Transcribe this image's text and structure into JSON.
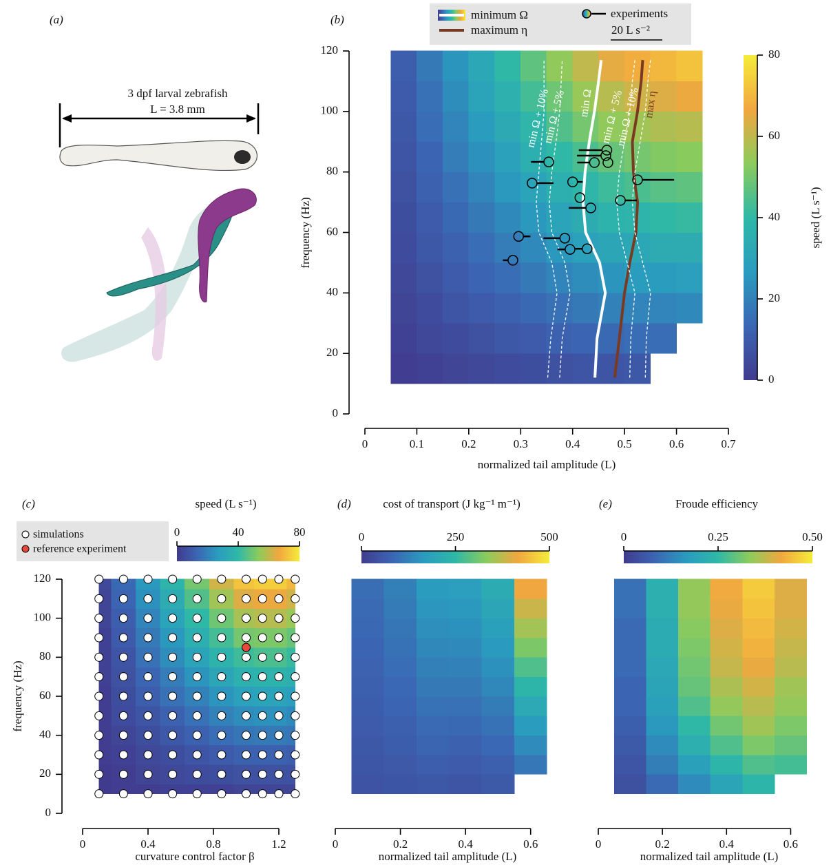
{
  "illustration": {
    "label": "(a)",
    "title": "3 dpf larval zebrafish",
    "scale": "L = 3.8 mm"
  },
  "chart_data": [
    {
      "type": "contour",
      "label": "(b)",
      "xlabel": "normalized tail amplitude (L)",
      "ylabel": "frequency (Hz)",
      "xlim": [
        0,
        0.7
      ],
      "xticks": [
        0,
        0.1,
        0.2,
        0.3,
        0.4,
        0.5,
        0.6,
        0.7
      ],
      "ylim": [
        0,
        120
      ],
      "yticks": [
        0,
        20,
        40,
        60,
        80,
        100,
        120
      ],
      "colormap": [
        "#413b8e",
        "#3b66b3",
        "#2a9cbf",
        "#2fb8a6",
        "#8ccb5c",
        "#f1a73f",
        "#f5ec3a"
      ],
      "colorbar": {
        "label": "speed (L s⁻¹)",
        "zlim": [
          0,
          80
        ],
        "ticks": [
          0,
          20,
          40,
          60,
          80
        ]
      },
      "x_edges": [
        0.05,
        0.1,
        0.15,
        0.2,
        0.25,
        0.3,
        0.35,
        0.4,
        0.45,
        0.5,
        0.55,
        0.6,
        0.65
      ],
      "y_edges": [
        10,
        20,
        30,
        40,
        50,
        60,
        70,
        80,
        90,
        100,
        110,
        120
      ],
      "z": [
        [
          1,
          2,
          3,
          4,
          5,
          6,
          7,
          8,
          8,
          9,
          null,
          null
        ],
        [
          2,
          4,
          5,
          7,
          9,
          10,
          12,
          13,
          14,
          15,
          15,
          null
        ],
        [
          3,
          5,
          8,
          10,
          12,
          14,
          16,
          18,
          20,
          21,
          21,
          22
        ],
        [
          4,
          7,
          10,
          13,
          15,
          18,
          21,
          23,
          25,
          27,
          27,
          28
        ],
        [
          5,
          9,
          12,
          15,
          19,
          22,
          26,
          29,
          31,
          32,
          34,
          34
        ],
        [
          6,
          10,
          14,
          18,
          22,
          26,
          30,
          34,
          37,
          38,
          40,
          41
        ],
        [
          7,
          12,
          16,
          21,
          26,
          30,
          35,
          39,
          42,
          44,
          46,
          47
        ],
        [
          8,
          13,
          19,
          24,
          29,
          35,
          40,
          44,
          48,
          50,
          52,
          53
        ],
        [
          9,
          15,
          21,
          27,
          33,
          39,
          45,
          50,
          54,
          56,
          58,
          59
        ],
        [
          10,
          16,
          23,
          30,
          36,
          43,
          49,
          55,
          59,
          62,
          64,
          66
        ],
        [
          11,
          18,
          25,
          32,
          40,
          47,
          54,
          60,
          65,
          68,
          70,
          72
        ]
      ],
      "scale_bar": {
        "value": 20,
        "label": "20 L s⁻²"
      },
      "series": [
        {
          "name": "minimum Ω",
          "label": "min Ω",
          "color": "#ffffff",
          "x": [
            0.443,
            0.447,
            0.463,
            0.452,
            0.425,
            0.42,
            0.424,
            0.432,
            0.442,
            0.45,
            0.455
          ],
          "y": [
            12,
            25,
            40,
            50,
            60,
            70,
            80,
            90,
            100,
            110,
            117
          ]
        },
        {
          "name": "maximum η",
          "label": "max η",
          "color": "#7a3a22",
          "x": [
            0.481,
            0.49,
            0.5,
            0.51,
            0.522,
            0.525,
            0.517,
            0.515,
            0.525,
            0.532,
            0.535
          ],
          "y": [
            12,
            25,
            40,
            50,
            60,
            70,
            80,
            90,
            100,
            110,
            117
          ]
        },
        {
          "label": "min Ω + 10%",
          "color": "#ffffff",
          "dashed": true,
          "x": [
            0.352,
            0.358,
            0.37,
            0.36,
            0.335,
            0.33,
            0.335,
            0.34,
            0.345,
            0.345,
            0.345
          ],
          "y": [
            12,
            25,
            40,
            50,
            60,
            70,
            80,
            90,
            100,
            110,
            117
          ]
        },
        {
          "label": "min Ω + 5%",
          "color": "#ffffff",
          "dashed": true,
          "x": [
            0.375,
            0.38,
            0.395,
            0.385,
            0.36,
            0.355,
            0.36,
            0.368,
            0.375,
            0.378,
            0.38
          ],
          "y": [
            12,
            25,
            40,
            50,
            60,
            70,
            80,
            90,
            100,
            110,
            117
          ]
        },
        {
          "label": "min Ω + 5%",
          "color": "#ffffff",
          "dashed": true,
          "x": [
            0.51,
            0.512,
            0.52,
            0.505,
            0.49,
            0.485,
            0.49,
            0.5,
            0.51,
            0.515,
            0.52
          ],
          "y": [
            12,
            25,
            40,
            50,
            60,
            70,
            80,
            90,
            100,
            110,
            117
          ]
        },
        {
          "label": "min Ω + 10%",
          "color": "#ffffff",
          "dashed": true,
          "x": [
            0.54,
            0.542,
            0.55,
            0.535,
            0.52,
            0.515,
            0.52,
            0.53,
            0.54,
            0.545,
            0.55
          ],
          "y": [
            12,
            25,
            40,
            50,
            60,
            70,
            80,
            90,
            100,
            110,
            117
          ]
        },
        {
          "name": "experiments",
          "type": "scatter",
          "color": "#000000",
          "x": [
            0.322,
            0.296,
            0.285,
            0.354,
            0.4,
            0.414,
            0.435,
            0.385,
            0.395,
            0.428,
            0.442,
            0.466,
            0.464,
            0.468,
            0.492,
            0.525
          ],
          "y": [
            76.3,
            58.7,
            50.8,
            83.3,
            76.7,
            71.5,
            68.1,
            58.1,
            54.4,
            54.6,
            83.1,
            87.2,
            85.4,
            83.1,
            70.6,
            77.4
          ],
          "accel": [
            6.4,
            2.7,
            -2,
            -5,
            2,
            0,
            -6.7,
            -6.4,
            -3,
            -2.7,
            -4.8,
            -9,
            -9.3,
            0,
            4.5,
            12.3
          ]
        }
      ]
    },
    {
      "type": "heatmap",
      "label": "(c)",
      "xlabel": "curvature control factor β",
      "ylabel": "frequency (Hz)",
      "xlim": [
        0,
        1.4
      ],
      "xticks": [
        0,
        0.4,
        0.8,
        1.2
      ],
      "ylim": [
        0,
        120
      ],
      "yticks": [
        0,
        20,
        40,
        60,
        80,
        100,
        120
      ],
      "colormap": [
        "#413b8e",
        "#3b66b3",
        "#2a9cbf",
        "#2fb8a6",
        "#8ccb5c",
        "#f1a73f",
        "#f5ec3a"
      ],
      "colorbar": {
        "label": "speed (L s⁻¹)",
        "zlim": [
          0,
          80
        ],
        "ticks": [
          0,
          40,
          80
        ]
      },
      "grid": {
        "name": "simulations",
        "x": [
          0.1,
          0.25,
          0.4,
          0.55,
          0.7,
          0.85,
          1.0,
          1.1,
          1.2,
          1.3
        ],
        "y": [
          10,
          20,
          30,
          40,
          50,
          60,
          70,
          80,
          90,
          100,
          110,
          120
        ]
      },
      "z": [
        [
          0,
          1,
          1,
          2,
          2,
          2,
          3,
          3,
          3,
          3
        ],
        [
          0,
          1,
          3,
          4,
          5,
          6,
          7,
          7,
          7,
          7
        ],
        [
          1,
          2,
          4,
          6,
          8,
          10,
          12,
          12,
          12,
          11
        ],
        [
          1,
          3,
          6,
          9,
          12,
          15,
          17,
          18,
          18,
          17
        ],
        [
          1,
          5,
          8,
          12,
          16,
          20,
          23,
          24,
          24,
          22
        ],
        [
          1,
          6,
          11,
          16,
          20,
          25,
          29,
          30,
          30,
          28
        ],
        [
          2,
          7,
          13,
          19,
          25,
          31,
          36,
          37,
          37,
          35
        ],
        [
          2,
          8,
          16,
          23,
          30,
          37,
          42,
          44,
          44,
          41
        ],
        [
          2,
          10,
          18,
          26,
          35,
          43,
          50,
          51,
          51,
          48
        ],
        [
          3,
          11,
          21,
          30,
          40,
          49,
          57,
          59,
          59,
          55
        ],
        [
          3,
          13,
          24,
          34,
          45,
          56,
          64,
          66,
          66,
          62
        ],
        [
          4,
          14,
          26,
          38,
          50,
          62,
          72,
          74,
          74,
          70
        ]
      ],
      "reference": {
        "name": "reference experiment",
        "color": "#e8473a",
        "x": 1.0,
        "y": 85
      }
    },
    {
      "type": "contour",
      "label": "(d)",
      "xlabel": "normalized tail amplitude (L)",
      "xlim": [
        0,
        0.7
      ],
      "xticks": [
        0,
        0.2,
        0.4,
        0.6
      ],
      "ylim": [
        0,
        120
      ],
      "colormap": [
        "#413b8e",
        "#3b66b3",
        "#2a9cbf",
        "#2fb8a6",
        "#8ccb5c",
        "#f1a73f",
        "#f5ec3a"
      ],
      "colorbar": {
        "label": "cost of transport (J kg⁻¹ m⁻¹)",
        "zlim": [
          0,
          500
        ],
        "ticks": [
          0,
          250,
          500
        ]
      },
      "x_edges": [
        0.05,
        0.15,
        0.25,
        0.35,
        0.45,
        0.55,
        0.65
      ],
      "y_edges": [
        10,
        20,
        30,
        40,
        50,
        60,
        70,
        80,
        90,
        100,
        110,
        120
      ],
      "z": [
        [
          47,
          51,
          57,
          50,
          60,
          null
        ],
        [
          52,
          58,
          68,
          62,
          72,
          110
        ],
        [
          57,
          65,
          79,
          75,
          87,
          140
        ],
        [
          62,
          72,
          90,
          88,
          102,
          170
        ],
        [
          66,
          80,
          102,
          100,
          118,
          205
        ],
        [
          71,
          87,
          113,
          112,
          135,
          240
        ],
        [
          76,
          94,
          124,
          125,
          150,
          280
        ],
        [
          81,
          101,
          135,
          138,
          165,
          319
        ],
        [
          86,
          108,
          146,
          150,
          180,
          352
        ],
        [
          90,
          116,
          158,
          162,
          195,
          384
        ],
        [
          95,
          123,
          169,
          175,
          210,
          417
        ]
      ]
    },
    {
      "type": "contour",
      "label": "(e)",
      "xlabel": "normalized tail amplitude (L)",
      "xlim": [
        0,
        0.7
      ],
      "xticks": [
        0,
        0.2,
        0.4,
        0.6
      ],
      "ylim": [
        0,
        120
      ],
      "colormap": [
        "#413b8e",
        "#3b66b3",
        "#2a9cbf",
        "#2fb8a6",
        "#8ccb5c",
        "#f1a73f",
        "#f5ec3a"
      ],
      "colorbar": {
        "label": "Froude efficiency",
        "zlim": [
          0,
          0.5
        ],
        "ticks": [
          0,
          0.25,
          {
            "value": 0.5,
            "label": "0.50"
          }
        ]
      },
      "x_edges": [
        0.05,
        0.15,
        0.25,
        0.35,
        0.45,
        0.55,
        0.65
      ],
      "y_edges": [
        10,
        20,
        30,
        40,
        50,
        60,
        70,
        80,
        90,
        100,
        110,
        120
      ],
      "z": [
        [
          0.04,
          0.09,
          0.14,
          0.19,
          0.24,
          null
        ],
        [
          0.05,
          0.12,
          0.18,
          0.24,
          0.28,
          0.27
        ],
        [
          0.06,
          0.14,
          0.22,
          0.28,
          0.32,
          0.3
        ],
        [
          0.07,
          0.16,
          0.25,
          0.31,
          0.35,
          0.32
        ],
        [
          0.08,
          0.18,
          0.28,
          0.34,
          0.37,
          0.34
        ],
        [
          0.08,
          0.19,
          0.3,
          0.36,
          0.39,
          0.35
        ],
        [
          0.09,
          0.2,
          0.31,
          0.38,
          0.41,
          0.37
        ],
        [
          0.09,
          0.21,
          0.32,
          0.39,
          0.43,
          0.38
        ],
        [
          0.09,
          0.21,
          0.33,
          0.4,
          0.44,
          0.39
        ],
        [
          0.1,
          0.22,
          0.34,
          0.41,
          0.45,
          0.4
        ],
        [
          0.1,
          0.22,
          0.34,
          0.42,
          0.46,
          0.4
        ]
      ]
    }
  ]
}
